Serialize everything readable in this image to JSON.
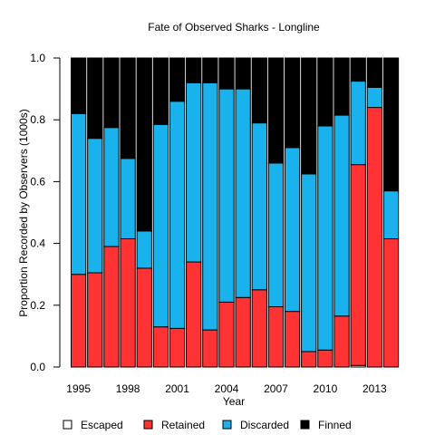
{
  "chart_data": {
    "type": "bar",
    "stacked": true,
    "title": "Fate of Observed Sharks - Longline",
    "xlabel": "Year",
    "ylabel": "Proportion Recorded by Observers (1000s)",
    "ylim": [
      0,
      1
    ],
    "yticks": [
      "0.0",
      "0.2",
      "0.4",
      "0.6",
      "0.8",
      "1.0"
    ],
    "xtick_labels": [
      "1995",
      "1998",
      "2001",
      "2004",
      "2007",
      "2010",
      "2013"
    ],
    "categories": [
      "1995",
      "1996",
      "1997",
      "1998",
      "1999",
      "2000",
      "2001",
      "2002",
      "2003",
      "2004",
      "2005",
      "2006",
      "2007",
      "2008",
      "2009",
      "2010",
      "2011",
      "2012",
      "2013",
      "2014"
    ],
    "series": [
      {
        "name": "Escaped",
        "color": "#ffffff",
        "values": [
          0,
          0,
          0,
          0,
          0,
          0,
          0,
          0,
          0,
          0,
          0,
          0,
          0,
          0,
          0,
          0,
          0,
          0.005,
          0,
          0
        ]
      },
      {
        "name": "Retained",
        "color": "#ff3333",
        "values": [
          0.3,
          0.305,
          0.39,
          0.415,
          0.32,
          0.13,
          0.125,
          0.34,
          0.12,
          0.21,
          0.225,
          0.25,
          0.195,
          0.18,
          0.05,
          0.055,
          0.165,
          0.65,
          0.84,
          0.415
        ]
      },
      {
        "name": "Discarded",
        "color": "#1ab2ec",
        "values": [
          0.52,
          0.435,
          0.385,
          0.26,
          0.12,
          0.655,
          0.735,
          0.58,
          0.8,
          0.69,
          0.675,
          0.54,
          0.465,
          0.53,
          0.575,
          0.725,
          0.65,
          0.27,
          0.065,
          0.155
        ]
      },
      {
        "name": "Finned",
        "color": "#000000",
        "values": [
          0.18,
          0.26,
          0.225,
          0.325,
          0.56,
          0.215,
          0.14,
          0.08,
          0.08,
          0.1,
          0.1,
          0.21,
          0.34,
          0.29,
          0.375,
          0.22,
          0.185,
          0.075,
          0.095,
          0.43
        ]
      }
    ],
    "legend_position": "bottom",
    "grid": false
  }
}
